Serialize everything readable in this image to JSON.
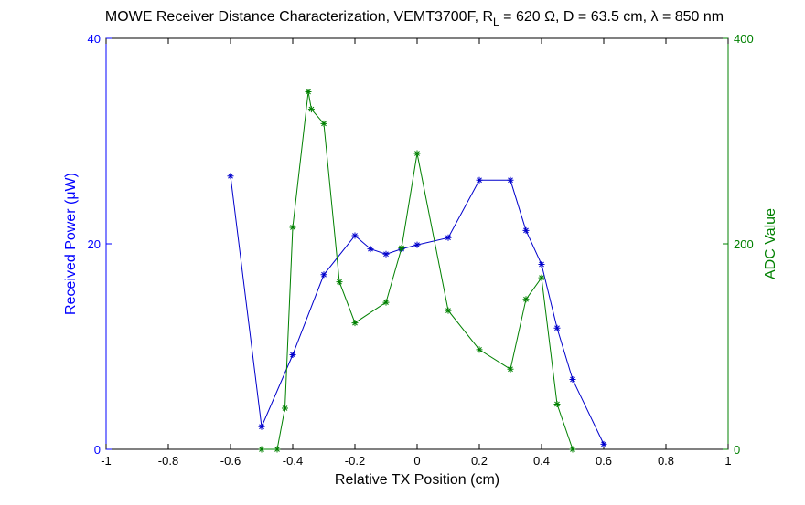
{
  "chart_data": {
    "type": "line",
    "title_parts": {
      "pre": "MOWE Receiver Distance Characterization, VEMT3700F, R",
      "sub": "L",
      "post": " = 620 Ω, D = 63.5 cm, λ = 850 nm"
    },
    "xlabel": "Relative TX Position (cm)",
    "ylabel_left": "Received Power (μW)",
    "ylabel_right": "ADC Value",
    "xlim": [
      -1,
      1
    ],
    "ylim_left": [
      0,
      40
    ],
    "ylim_right": [
      0,
      400
    ],
    "x_ticks": [
      -1,
      -0.8,
      -0.6,
      -0.4,
      -0.2,
      0,
      0.2,
      0.4,
      0.6,
      0.8,
      1
    ],
    "x_tick_labels": [
      "-1",
      "-0.8",
      "-0.6",
      "-0.4",
      "-0.2",
      "0",
      "0.2",
      "0.4",
      "0.6",
      "0.8",
      "1"
    ],
    "y_left_ticks": [
      0,
      20,
      40
    ],
    "y_left_tick_labels": [
      "0",
      "20",
      "40"
    ],
    "y_right_ticks": [
      0,
      200,
      400
    ],
    "y_right_tick_labels": [
      "0",
      "200",
      "400"
    ],
    "grid": false,
    "colors": {
      "left_axis": "#0000ff",
      "right_axis": "#008000",
      "frame": "#000000"
    },
    "series": [
      {
        "axis": "left",
        "color": "#0000cc",
        "marker": "*",
        "x": [
          -0.6,
          -0.5,
          -0.4,
          -0.3,
          -0.2,
          -0.15,
          -0.1,
          -0.05,
          0,
          0.1,
          0.2,
          0.3,
          0.35,
          0.4,
          0.45,
          0.5,
          0.6
        ],
        "y": [
          26.6,
          2.2,
          9.2,
          17.0,
          20.8,
          19.5,
          19.0,
          19.5,
          19.9,
          20.6,
          26.2,
          26.2,
          21.3,
          18.0,
          11.8,
          6.8,
          0.5
        ]
      },
      {
        "axis": "right",
        "color": "#008000",
        "marker": "*",
        "x": [
          -0.5,
          -0.45,
          -0.425,
          -0.4,
          -0.35,
          -0.34,
          -0.3,
          -0.25,
          -0.2,
          -0.1,
          -0.05,
          0,
          0.1,
          0.2,
          0.3,
          0.35,
          0.4,
          0.45,
          0.5
        ],
        "y": [
          0,
          0,
          40,
          216,
          348,
          331,
          317,
          163,
          123,
          143,
          196,
          288,
          135,
          97,
          78,
          146,
          167,
          44,
          0
        ]
      }
    ]
  }
}
